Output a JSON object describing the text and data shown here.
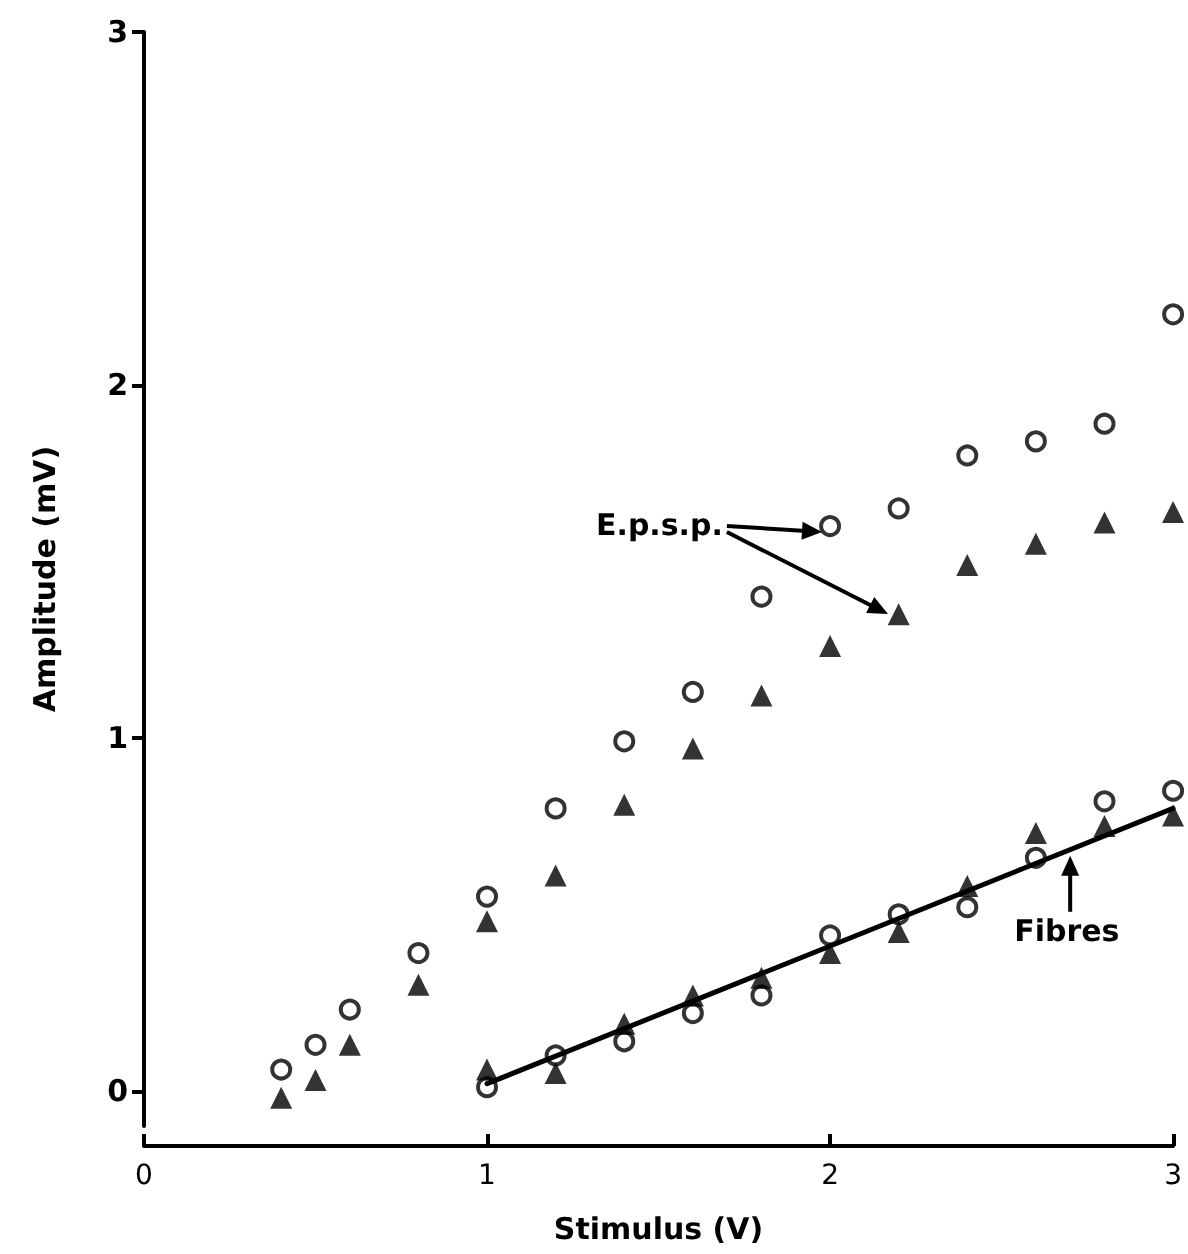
{
  "chart_data": {
    "type": "scatter",
    "xlabel": "Stimulus (V)",
    "ylabel": "Amplitude (mV)",
    "xlim": [
      0,
      3
    ],
    "xticks": [
      0,
      1,
      2,
      3
    ],
    "ylim": [
      -0.1,
      3
    ],
    "yticks": [
      0,
      1,
      2,
      3
    ],
    "grid": false,
    "series": [
      {
        "color": "#000000",
        "marker": "circle",
        "x": [
          0.4,
          0.5,
          0.6,
          0.8,
          1.0,
          1.2,
          1.4,
          1.6,
          1.8,
          2.0,
          2.2,
          2.4,
          2.6,
          2.8,
          3.0
        ],
        "values": [
          0.06,
          0.13,
          0.23,
          0.39,
          0.55,
          0.8,
          0.99,
          1.13,
          1.4,
          1.6,
          1.65,
          1.8,
          1.84,
          1.89,
          2.2
        ]
      },
      {
        "color": "#000000",
        "marker": "triangle",
        "x": [
          0.4,
          0.5,
          0.6,
          0.8,
          1.0,
          1.2,
          1.4,
          1.6,
          1.8,
          2.0,
          2.2,
          2.4,
          2.6,
          2.8,
          3.0
        ],
        "values": [
          -0.02,
          0.03,
          0.13,
          0.3,
          0.48,
          0.61,
          0.81,
          0.97,
          1.12,
          1.26,
          1.35,
          1.49,
          1.55,
          1.61,
          1.64
        ]
      },
      {
        "color": "#000000",
        "marker": "circle",
        "x": [
          1.0,
          1.2,
          1.4,
          1.6,
          1.8,
          2.0,
          2.2,
          2.4,
          2.6,
          2.8,
          3.0
        ],
        "values": [
          0.01,
          0.1,
          0.14,
          0.22,
          0.27,
          0.44,
          0.5,
          0.52,
          0.66,
          0.82,
          0.85
        ]
      },
      {
        "color": "#000000",
        "marker": "triangle",
        "x": [
          1.0,
          1.2,
          1.4,
          1.6,
          1.8,
          2.0,
          2.2,
          2.4,
          2.6,
          2.8,
          3.0
        ],
        "values": [
          0.06,
          0.05,
          0.19,
          0.27,
          0.32,
          0.39,
          0.45,
          0.58,
          0.73,
          0.75,
          0.78
        ]
      },
      {
        "type": "line",
        "color": "#000000",
        "marker": "none",
        "line_style": "solid",
        "x": [
          1.0,
          3.0
        ],
        "values": [
          0.02,
          0.8
        ]
      }
    ],
    "annotations": [
      "E.p.s.p.",
      {
        "text": "Fibres",
        "x": 2.7,
        "y": 0.7
      }
    ]
  }
}
